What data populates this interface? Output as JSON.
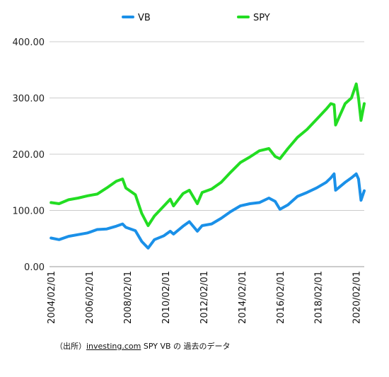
{
  "source": {
    "prefix": "（出所）",
    "link": "investing.com",
    "suffix": " SPY VB の 過去のデータ"
  },
  "chart_data": {
    "type": "line",
    "title": "",
    "xlabel": "",
    "ylabel": "",
    "ylim": [
      0,
      400
    ],
    "xlim": [
      2004.0,
      2020.5
    ],
    "y_ticks": [
      0,
      100,
      200,
      300,
      400
    ],
    "y_tick_labels": [
      "0.00",
      "100.00",
      "200.00",
      "300.00",
      "400.00"
    ],
    "x_tick_labels": [
      "2004/02/01",
      "2006/02/01",
      "2008/02/01",
      "2010/02/01",
      "2012/02/01",
      "2014/02/01",
      "2016/02/01",
      "2018/02/01",
      "2020/02/01"
    ],
    "x_tick_years": [
      2004.08,
      2006.08,
      2008.08,
      2010.08,
      2012.08,
      2014.08,
      2016.08,
      2018.08,
      2020.08
    ],
    "grid": true,
    "legend_position": "top-center",
    "series": [
      {
        "name": "VB",
        "color": "#1a90e8",
        "x": [
          2004.08,
          2004.5,
          2005.0,
          2005.5,
          2006.0,
          2006.5,
          2007.0,
          2007.5,
          2007.83,
          2008.0,
          2008.5,
          2008.83,
          2009.17,
          2009.5,
          2010.0,
          2010.33,
          2010.5,
          2011.0,
          2011.33,
          2011.75,
          2012.0,
          2012.5,
          2013.0,
          2013.5,
          2014.0,
          2014.5,
          2015.0,
          2015.5,
          2015.83,
          2016.08,
          2016.5,
          2017.0,
          2017.5,
          2018.0,
          2018.5,
          2018.75,
          2018.92,
          2019.0,
          2019.5,
          2019.83,
          2020.08,
          2020.2,
          2020.33,
          2020.5
        ],
        "y": [
          51,
          48,
          54,
          57,
          60,
          66,
          67,
          72,
          76,
          70,
          64,
          45,
          33,
          48,
          55,
          63,
          58,
          72,
          80,
          63,
          73,
          76,
          86,
          98,
          108,
          112,
          114,
          122,
          116,
          102,
          110,
          125,
          132,
          140,
          150,
          158,
          165,
          136,
          150,
          158,
          165,
          156,
          118,
          135
        ]
      },
      {
        "name": "SPY",
        "color": "#22dd22",
        "x": [
          2004.08,
          2004.5,
          2005.0,
          2005.5,
          2006.0,
          2006.5,
          2007.0,
          2007.5,
          2007.83,
          2008.0,
          2008.5,
          2008.83,
          2009.17,
          2009.5,
          2010.0,
          2010.33,
          2010.5,
          2011.0,
          2011.33,
          2011.75,
          2012.0,
          2012.5,
          2013.0,
          2013.5,
          2014.0,
          2014.5,
          2015.0,
          2015.5,
          2015.83,
          2016.08,
          2016.5,
          2017.0,
          2017.5,
          2018.0,
          2018.5,
          2018.75,
          2018.92,
          2019.0,
          2019.5,
          2019.83,
          2020.08,
          2020.2,
          2020.33,
          2020.5
        ],
        "y": [
          114,
          112,
          119,
          122,
          126,
          129,
          140,
          152,
          156,
          140,
          128,
          95,
          73,
          90,
          108,
          120,
          108,
          130,
          136,
          112,
          132,
          138,
          150,
          168,
          185,
          195,
          206,
          210,
          196,
          192,
          210,
          230,
          244,
          262,
          280,
          290,
          288,
          252,
          290,
          300,
          325,
          300,
          260,
          290
        ]
      }
    ]
  }
}
